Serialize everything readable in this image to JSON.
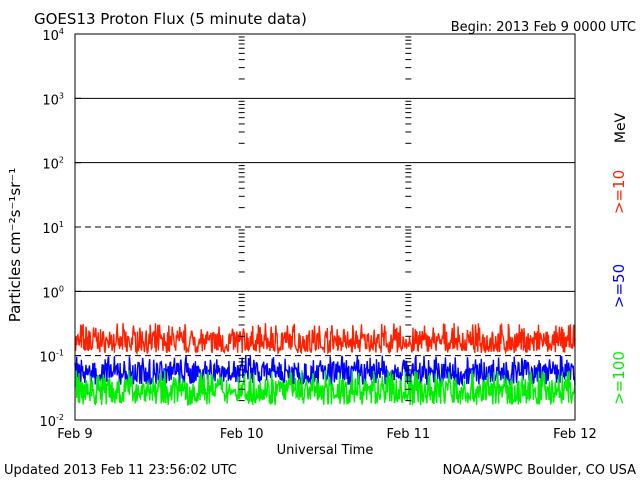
{
  "chart_data": {
    "type": "line",
    "title": "GOES13 Proton Flux (5 minute data)",
    "begin_label": "Begin: 2013 Feb 9 0000 UTC",
    "xlabel": "Universal Time",
    "ylabel": "Particles cm⁻²s⁻¹sr⁻¹",
    "y_scale": "log",
    "ylim": [
      0.01,
      10000
    ],
    "y_ticks": [
      {
        "base": "10",
        "exp": "-2"
      },
      {
        "base": "10",
        "exp": "-1"
      },
      {
        "base": "10",
        "exp": "0"
      },
      {
        "base": "10",
        "exp": "1"
      },
      {
        "base": "10",
        "exp": "2"
      },
      {
        "base": "10",
        "exp": "3"
      },
      {
        "base": "10",
        "exp": "4"
      }
    ],
    "x_ticks": [
      "Feb 9",
      "Feb 10",
      "Feb 11",
      "Feb 12"
    ],
    "xlim_days": [
      0,
      3
    ],
    "threshold_lines": [
      {
        "value": 10,
        "style": "dashed"
      },
      {
        "value": 0.1,
        "style": "dashed"
      }
    ],
    "grid": true,
    "energy_unit": "MeV",
    "series": [
      {
        "name": ">=10",
        "color": "#ff2000",
        "baseline": 0.16,
        "low": 0.11,
        "high": 0.32
      },
      {
        "name": ">=50",
        "color": "#0000ff",
        "baseline": 0.055,
        "low": 0.035,
        "high": 0.1
      },
      {
        "name": ">=100",
        "color": "#00ee00",
        "baseline": 0.028,
        "low": 0.017,
        "high": 0.06
      }
    ]
  },
  "footer": {
    "updated": "Updated 2013 Feb 11 23:56:02 UTC",
    "source": "NOAA/SWPC Boulder, CO USA"
  }
}
